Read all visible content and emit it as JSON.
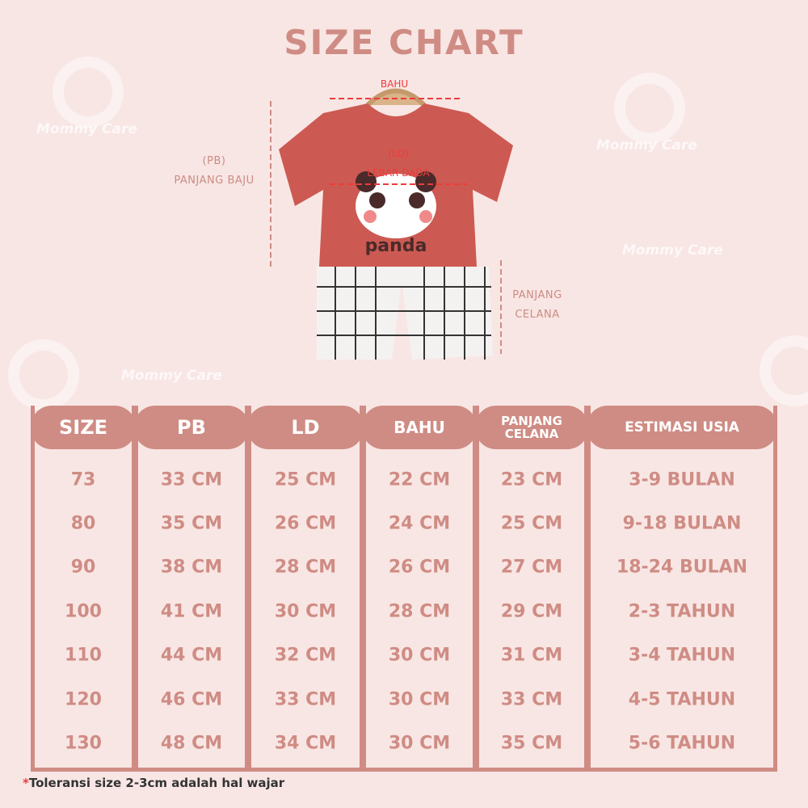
{
  "title": "SIZE CHART",
  "watermark": "Mommy Care",
  "diagram": {
    "bahu": "BAHU",
    "ld_abbr": "(LD)",
    "ld": "LEBAR DADA",
    "pb_abbr": "(PB)",
    "pb": "PANJANG BAJU",
    "pc_line1": "PANJANG",
    "pc_line2": "CELANA",
    "shirt_print": "panda"
  },
  "colors": {
    "accent": "#cf8c84",
    "background": "#f8e6e4",
    "measure": "#ee3b3b"
  },
  "table": {
    "headers": [
      "SIZE",
      "PB",
      "LD",
      "BAHU",
      "PANJANG CELANA",
      "ESTIMASI USIA"
    ],
    "rows": [
      [
        "73",
        "33 CM",
        "25 CM",
        "22 CM",
        "23 CM",
        "3-9 BULAN"
      ],
      [
        "80",
        "35 CM",
        "26 CM",
        "24 CM",
        "25 CM",
        "9-18 BULAN"
      ],
      [
        "90",
        "38 CM",
        "28 CM",
        "26 CM",
        "27 CM",
        "18-24 BULAN"
      ],
      [
        "100",
        "41 CM",
        "30 CM",
        "28 CM",
        "29 CM",
        "2-3 TAHUN"
      ],
      [
        "110",
        "44 CM",
        "32 CM",
        "30 CM",
        "31 CM",
        "3-4 TAHUN"
      ],
      [
        "120",
        "46 CM",
        "33 CM",
        "30 CM",
        "33 CM",
        "4-5 TAHUN"
      ],
      [
        "130",
        "48 CM",
        "34 CM",
        "30 CM",
        "35 CM",
        "5-6 TAHUN"
      ]
    ]
  },
  "note": {
    "star": "*",
    "text": "Toleransi size 2-3cm adalah hal wajar"
  }
}
